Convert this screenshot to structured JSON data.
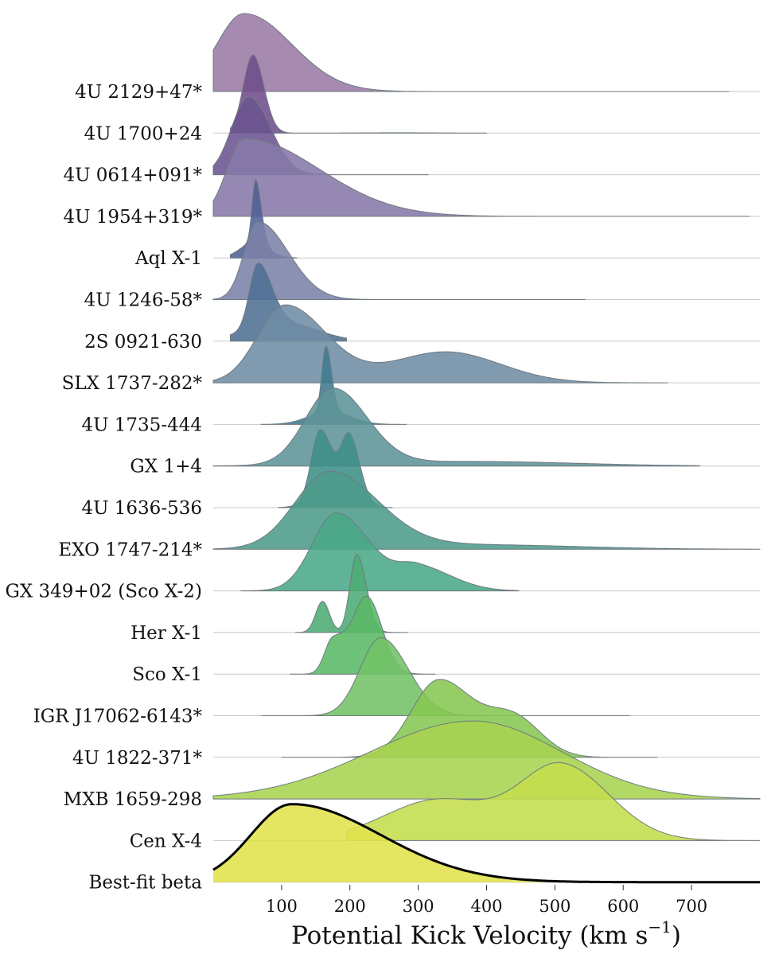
{
  "chart_data": {
    "type": "ridgeline",
    "xlabel": "Potential Kick Velocity (km s",
    "xlabel_sup": "−1",
    "xlabel_close": ")",
    "xlim": [
      0,
      800
    ],
    "xticks": [
      "100",
      "200",
      "300",
      "400",
      "500",
      "600",
      "700"
    ],
    "xtick_values": [
      100,
      200,
      300,
      400,
      500,
      600,
      700
    ],
    "colormap": "viridis",
    "series": [
      {
        "name": "4U 2129+47*",
        "color": "#9a7aa4",
        "range": [
          0,
          755
        ],
        "peaks": [
          [
            45,
            40,
            70,
            1.0
          ]
        ]
      },
      {
        "name": "4U 1700+24",
        "color": "#6f4c8c",
        "range": [
          25,
          400
        ],
        "peaks": [
          [
            58,
            14,
            16,
            1.0
          ],
          [
            270,
            60,
            60,
            0.004
          ]
        ]
      },
      {
        "name": "4U 0614+091*",
        "color": "#6b5490",
        "range": [
          0,
          315
        ],
        "peaks": [
          [
            52,
            25,
            32,
            1.0
          ]
        ]
      },
      {
        "name": "4U 1954+319*",
        "color": "#8679a8",
        "range": [
          0,
          785
        ],
        "peaks": [
          [
            45,
            25,
            110,
            1.0
          ]
        ]
      },
      {
        "name": "Aql X-1",
        "color": "#4e5f96",
        "range": [
          25,
          122
        ],
        "peaks": [
          [
            62,
            5,
            8,
            1.0
          ],
          [
            60,
            20,
            20,
            0.25
          ]
        ]
      },
      {
        "name": "4U 1246-58*",
        "color": "#7b82a8",
        "range": [
          0,
          545
        ],
        "peaks": [
          [
            65,
            20,
            45,
            1.0
          ]
        ]
      },
      {
        "name": "2S 0921-630",
        "color": "#4f6f93",
        "range": [
          25,
          195
        ],
        "peaks": [
          [
            65,
            12,
            20,
            1.0
          ],
          [
            100,
            50,
            50,
            0.3
          ]
        ]
      },
      {
        "name": "SLX 1737-282*",
        "color": "#6e8ca4",
        "range": [
          0,
          665
        ],
        "peaks": [
          [
            105,
            40,
            60,
            1.0
          ],
          [
            340,
            80,
            80,
            0.4
          ]
        ]
      },
      {
        "name": "4U 1735-444",
        "color": "#3e7a8f",
        "range": [
          70,
          283
        ],
        "peaks": [
          [
            165,
            6,
            8,
            1.0
          ],
          [
            170,
            30,
            30,
            0.2
          ]
        ]
      },
      {
        "name": "GX 1+4",
        "color": "#5e9499",
        "range": [
          0,
          712
        ],
        "peaks": [
          [
            175,
            40,
            50,
            1.0
          ],
          [
            380,
            150,
            150,
            0.06
          ]
        ]
      },
      {
        "name": "4U 1636-536",
        "color": "#3e8e89",
        "range": [
          95,
          262
        ],
        "peaks": [
          [
            155,
            12,
            15,
            1.0
          ],
          [
            200,
            12,
            15,
            1.0
          ],
          [
            175,
            25,
            25,
            0.5
          ]
        ]
      },
      {
        "name": "EXO 1747-214*",
        "color": "#4d9b8b",
        "range": [
          0,
          800
        ],
        "peaks": [
          [
            170,
            50,
            70,
            1.0
          ],
          [
            380,
            150,
            150,
            0.06
          ]
        ]
      },
      {
        "name": "GX 349+02 (Sco X-2)",
        "color": "#4aa987",
        "range": [
          40,
          447
        ],
        "peaks": [
          [
            180,
            35,
            50,
            1.0
          ],
          [
            300,
            30,
            50,
            0.3
          ]
        ]
      },
      {
        "name": "Her X-1",
        "color": "#4cac74",
        "range": [
          120,
          285
        ],
        "peaks": [
          [
            210,
            10,
            14,
            1.0
          ],
          [
            160,
            10,
            10,
            0.4
          ]
        ]
      },
      {
        "name": "Sco X-1",
        "color": "#5ab866",
        "range": [
          112,
          325
        ],
        "peaks": [
          [
            225,
            20,
            22,
            1.0
          ],
          [
            175,
            12,
            20,
            0.45
          ]
        ]
      },
      {
        "name": "IGR J17062-6143*",
        "color": "#72c266",
        "range": [
          70,
          610
        ],
        "peaks": [
          [
            245,
            30,
            40,
            1.0
          ]
        ]
      },
      {
        "name": "4U 1822-371*",
        "color": "#86c652",
        "range": [
          100,
          650
        ],
        "peaks": [
          [
            330,
            40,
            50,
            1.0
          ],
          [
            440,
            40,
            40,
            0.5
          ]
        ]
      },
      {
        "name": "MXB 1659-298",
        "color": "#a7d350",
        "range": [
          0,
          800
        ],
        "peaks": [
          [
            380,
            150,
            130,
            1.0
          ]
        ]
      },
      {
        "name": "Cen X-4",
        "color": "#c4dd4c",
        "range": [
          195,
          800
        ],
        "peaks": [
          [
            510,
            60,
            70,
            1.0
          ],
          [
            330,
            80,
            80,
            0.55
          ]
        ]
      },
      {
        "name": "Best-fit beta",
        "color": "#e0e24c",
        "range": [
          0,
          800
        ],
        "peaks": [
          [
            115,
            60,
            130,
            1.0
          ]
        ],
        "outline": true
      }
    ]
  }
}
